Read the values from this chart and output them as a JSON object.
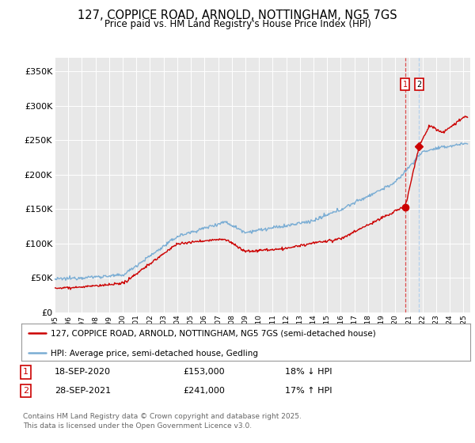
{
  "title": "127, COPPICE ROAD, ARNOLD, NOTTINGHAM, NG5 7GS",
  "subtitle": "Price paid vs. HM Land Registry's House Price Index (HPI)",
  "ylabel_ticks": [
    "£0",
    "£50K",
    "£100K",
    "£150K",
    "£200K",
    "£250K",
    "£300K",
    "£350K"
  ],
  "ytick_values": [
    0,
    50000,
    100000,
    150000,
    200000,
    250000,
    300000,
    350000
  ],
  "ylim": [
    0,
    370000
  ],
  "xlim_start": 1995.0,
  "xlim_end": 2025.5,
  "red_color": "#cc0000",
  "blue_color": "#7aadd4",
  "dashed_red": "#dd3333",
  "dashed_blue": "#aaccee",
  "legend_label_red": "127, COPPICE ROAD, ARNOLD, NOTTINGHAM, NG5 7GS (semi-detached house)",
  "legend_label_blue": "HPI: Average price, semi-detached house, Gedling",
  "transaction1_date": "18-SEP-2020",
  "transaction1_price": "£153,000",
  "transaction1_hpi": "18% ↓ HPI",
  "transaction2_date": "28-SEP-2021",
  "transaction2_price": "£241,000",
  "transaction2_hpi": "17% ↑ HPI",
  "footer": "Contains HM Land Registry data © Crown copyright and database right 2025.\nThis data is licensed under the Open Government Licence v3.0.",
  "vline1_x": 2020.72,
  "vline2_x": 2021.75,
  "marker1_x": 2020.72,
  "marker1_y": 153000,
  "marker2_x": 2021.75,
  "marker2_y": 241000,
  "background_color": "#e8e8e8",
  "grid_color": "#ffffff"
}
